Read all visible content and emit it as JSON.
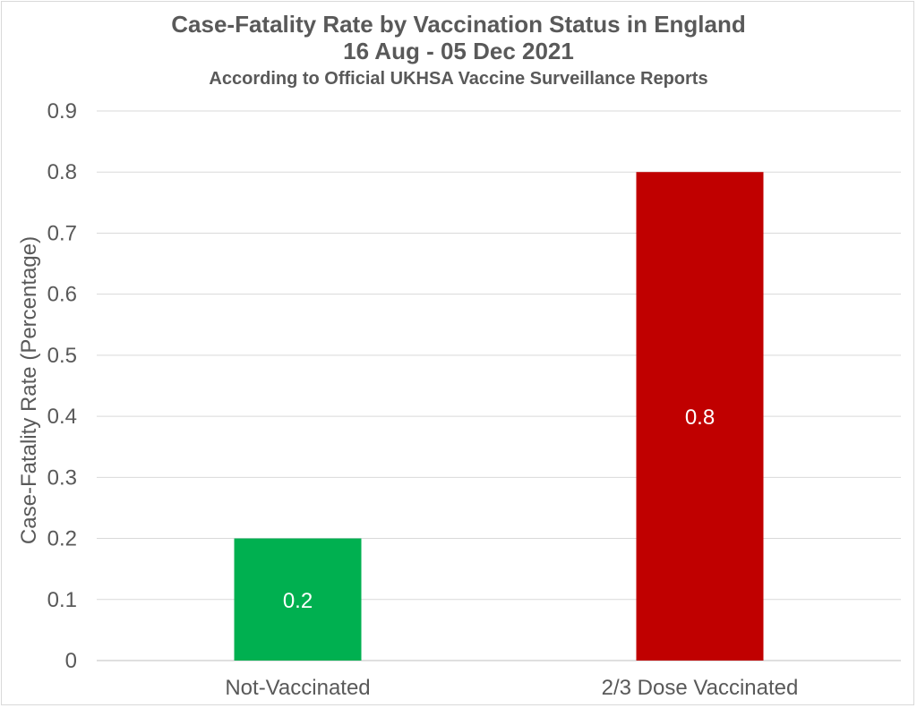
{
  "chart_data": {
    "type": "bar",
    "title": "Case-Fatality Rate by Vaccination Status in England",
    "subtitle": "16 Aug - 05 Dec 2021",
    "subtitle2": "According to Official UKHSA Vaccine Surveillance Reports",
    "xlabel": "",
    "ylabel": "Case-Fatality Rate (Percentage)",
    "categories": [
      "Not-Vaccinated",
      "2/3 Dose Vaccinated"
    ],
    "values": [
      0.2,
      0.8
    ],
    "data_labels": [
      "0.2",
      "0.8"
    ],
    "bar_colors": [
      "#00b050",
      "#c00000"
    ],
    "ylim": [
      0,
      0.9
    ],
    "yticks": [
      "0",
      "0.1",
      "0.2",
      "0.3",
      "0.4",
      "0.5",
      "0.6",
      "0.7",
      "0.8",
      "0.9"
    ],
    "grid": true,
    "legend": "none"
  }
}
